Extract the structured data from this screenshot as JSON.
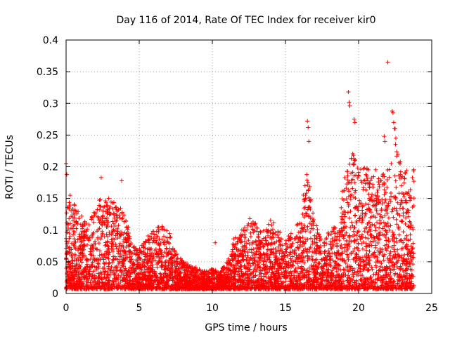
{
  "chart_data": {
    "type": "scatter",
    "title": "Day 116 of 2014, Rate Of TEC Index for receiver kir0",
    "xlabel": "GPS time / hours",
    "ylabel": "ROTI / TECUs",
    "xlim": [
      0,
      25
    ],
    "ylim": [
      0,
      0.4
    ],
    "x_ticks": [
      "0",
      "5",
      "10",
      "15",
      "20",
      "25"
    ],
    "y_ticks": [
      "0",
      "0.05",
      "0.1",
      "0.15",
      "0.2",
      "0.25",
      "0.3",
      "0.35",
      "0.4"
    ],
    "grid": true,
    "legend": "none",
    "marker": "plus",
    "color": "#ff0000",
    "envelope": {
      "x": [
        0,
        0.3,
        0.8,
        1.5,
        2.0,
        2.5,
        3.0,
        3.5,
        4.0,
        4.5,
        5.0,
        5.5,
        6.0,
        6.5,
        7.0,
        7.5,
        8.0,
        8.5,
        9.0,
        9.5,
        10.0,
        10.5,
        11.0,
        11.5,
        12.0,
        12.5,
        13.0,
        13.5,
        14.0,
        14.5,
        15.0,
        15.5,
        16.0,
        16.5,
        17.0,
        17.5,
        18.0,
        18.5,
        19.0,
        19.5,
        20.0,
        20.5,
        21.0,
        21.5,
        22.0,
        22.5,
        23.0,
        23.5,
        23.8
      ],
      "y": [
        0.13,
        0.16,
        0.13,
        0.11,
        0.14,
        0.16,
        0.15,
        0.14,
        0.13,
        0.08,
        0.07,
        0.09,
        0.1,
        0.11,
        0.1,
        0.07,
        0.05,
        0.045,
        0.04,
        0.035,
        0.04,
        0.035,
        0.05,
        0.09,
        0.1,
        0.12,
        0.11,
        0.1,
        0.12,
        0.1,
        0.09,
        0.1,
        0.12,
        0.2,
        0.12,
        0.08,
        0.1,
        0.11,
        0.18,
        0.23,
        0.2,
        0.2,
        0.2,
        0.19,
        0.2,
        0.24,
        0.2,
        0.19,
        0.2
      ]
    },
    "outliers": [
      {
        "x": 0.0,
        "y": 0.205
      },
      {
        "x": 0.05,
        "y": 0.188
      },
      {
        "x": 2.4,
        "y": 0.183
      },
      {
        "x": 3.8,
        "y": 0.178
      },
      {
        "x": 10.2,
        "y": 0.08
      },
      {
        "x": 16.5,
        "y": 0.272
      },
      {
        "x": 16.55,
        "y": 0.262
      },
      {
        "x": 16.6,
        "y": 0.24
      },
      {
        "x": 19.3,
        "y": 0.318
      },
      {
        "x": 19.35,
        "y": 0.302
      },
      {
        "x": 19.4,
        "y": 0.296
      },
      {
        "x": 19.7,
        "y": 0.275
      },
      {
        "x": 19.75,
        "y": 0.27
      },
      {
        "x": 21.75,
        "y": 0.248
      },
      {
        "x": 21.8,
        "y": 0.24
      },
      {
        "x": 22.0,
        "y": 0.365
      },
      {
        "x": 22.3,
        "y": 0.288
      },
      {
        "x": 22.35,
        "y": 0.285
      },
      {
        "x": 22.4,
        "y": 0.27
      },
      {
        "x": 22.45,
        "y": 0.26
      },
      {
        "x": 22.5,
        "y": 0.26
      },
      {
        "x": 22.55,
        "y": 0.245
      }
    ]
  }
}
